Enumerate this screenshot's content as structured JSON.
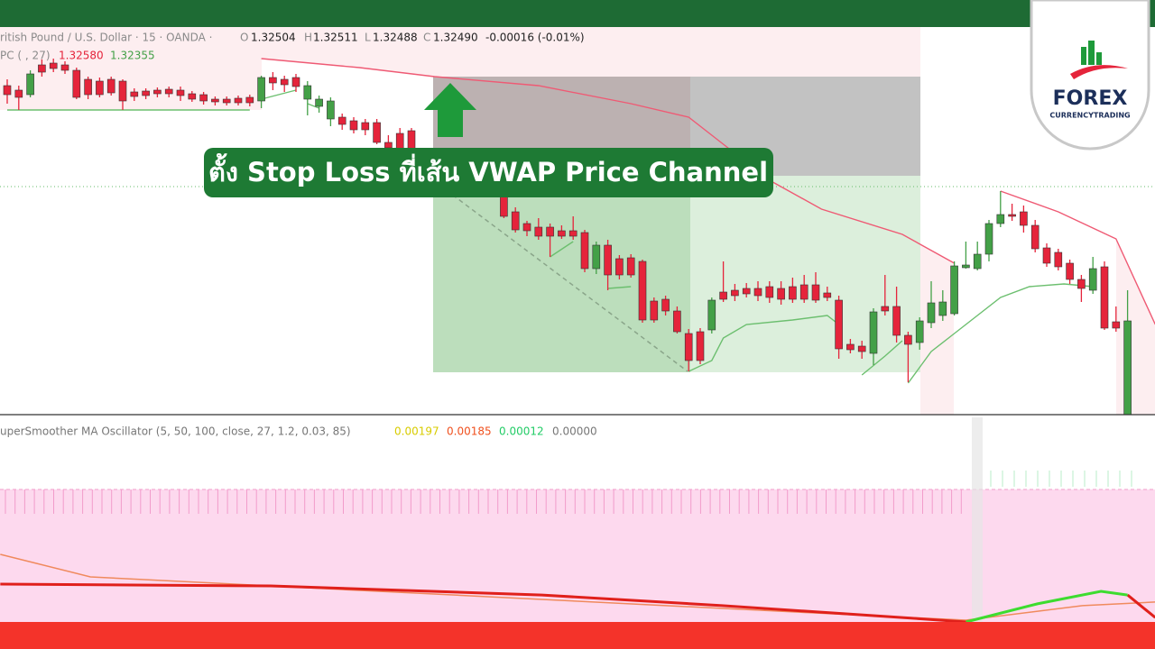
{
  "header": {
    "symbol": "ritish Pound / U.S. Dollar · 15 · OANDA ·",
    "fields": [
      {
        "label": "O",
        "value": "1.32504"
      },
      {
        "label": "H",
        "value": "1.32511"
      },
      {
        "label": "L",
        "value": "1.32488"
      },
      {
        "label": "C",
        "value": "1.32490"
      }
    ],
    "change": "-0.00016 (-0.01%)"
  },
  "channel_legend": {
    "label": "PC ( , 27)",
    "upper": "1.32580",
    "lower": "1.32355"
  },
  "oscillator_legend": {
    "label": "uperSmoother MA Oscillator (5, 50, 100, close, 27, 1.2, 0.03, 85)",
    "values": [
      "0.00197",
      "0.00185",
      "0.00012",
      "0.00000"
    ]
  },
  "banner": "ตั้ง Stop Loss ที่เส้น VWAP Price Channel",
  "logo": {
    "name": "FOREX",
    "tagline": "CURRENCYTRADING"
  },
  "chart_data": [
    {
      "type": "candlestick",
      "xlim": [
        -0.625,
        99.375
      ],
      "ylim": [
        1.3254,
        1.3297
      ],
      "up_color": "#43a047",
      "down_color": "#e5243b",
      "price_line": 1.32793,
      "price_line_color": "#66bb6a",
      "open": [
        1.32905,
        1.329,
        1.32895,
        1.32928,
        1.3293,
        1.32928,
        1.32922,
        1.32912,
        1.3291,
        1.32912,
        1.3291,
        1.32898,
        1.32899,
        1.329,
        1.32901,
        1.329,
        1.32896,
        1.32895,
        1.3289,
        1.3289,
        1.32891,
        1.32892,
        1.32888,
        1.32914,
        1.32912,
        1.32914,
        1.3289,
        1.32882,
        1.32868,
        1.3287,
        1.32866,
        1.32864,
        1.32864,
        1.32842,
        1.32852,
        1.32855,
        null,
        null,
        null,
        null,
        null,
        null,
        null,
        1.32785,
        1.32765,
        1.32752,
        1.32748,
        1.32748,
        1.32744,
        1.32744,
        1.32742,
        1.32702,
        1.32728,
        1.32713,
        1.32714,
        1.3271,
        1.32666,
        1.32668,
        1.32655,
        1.3263,
        1.32632,
        1.32634,
        1.32676,
        1.32678,
        1.3268,
        1.3268,
        1.32682,
        1.3268,
        1.32682,
        1.32684,
        1.32684,
        1.32675,
        1.32667,
        1.32618,
        1.32616,
        1.32608,
        1.3266,
        1.3266,
        1.32628,
        1.3262,
        1.32642,
        1.3265,
        1.32652,
        1.32703,
        1.32702,
        1.32718,
        1.32752,
        1.32762,
        1.32765,
        1.3275,
        1.32725,
        1.3272,
        1.32708,
        1.3269,
        1.32678,
        1.32704,
        1.32643,
        1.3254
      ],
      "high": [
        1.32912,
        1.32905,
        1.32922,
        1.32934,
        1.32935,
        1.32932,
        1.32925,
        1.32915,
        1.32914,
        1.32915,
        1.32912,
        1.32902,
        1.32902,
        1.32903,
        1.32904,
        1.32904,
        1.32899,
        1.32898,
        1.32893,
        1.32893,
        1.32894,
        1.32895,
        1.32916,
        1.3292,
        1.32916,
        1.32918,
        1.3291,
        1.32894,
        1.32892,
        1.32874,
        1.3287,
        1.32868,
        1.32868,
        1.3285,
        1.32858,
        1.32858,
        null,
        null,
        null,
        null,
        null,
        null,
        null,
        1.3279,
        1.3277,
        1.32755,
        1.32758,
        1.32752,
        1.3275,
        1.3276,
        1.32745,
        1.32732,
        1.32734,
        1.32717,
        1.32718,
        1.32712,
        1.3267,
        1.32672,
        1.3266,
        1.32635,
        1.32636,
        1.3267,
        1.3271,
        1.32685,
        1.32686,
        1.32688,
        1.32688,
        1.32688,
        1.32692,
        1.32695,
        1.32698,
        1.32682,
        1.32672,
        1.32624,
        1.32622,
        1.32658,
        1.32695,
        1.32682,
        1.32632,
        1.32648,
        1.32688,
        1.32678,
        1.3271,
        1.32732,
        1.32732,
        1.32756,
        1.32788,
        1.32774,
        1.32772,
        1.32756,
        1.3273,
        1.32724,
        1.32712,
        1.32695,
        1.32715,
        1.3271,
        1.3266,
        1.32678
      ],
      "low": [
        1.32885,
        1.32878,
        1.32892,
        1.32915,
        1.3292,
        1.32918,
        1.3289,
        1.3289,
        1.32892,
        1.32894,
        1.32878,
        1.32888,
        1.3289,
        1.32892,
        1.32892,
        1.32888,
        1.32887,
        1.32884,
        1.32883,
        1.32883,
        1.32883,
        1.32882,
        1.3288,
        1.329,
        1.32898,
        1.32898,
        1.32872,
        1.32875,
        1.3286,
        1.32856,
        1.32852,
        1.3285,
        1.3284,
        1.3283,
        1.32825,
        1.32825,
        null,
        null,
        null,
        null,
        null,
        null,
        null,
        1.32758,
        1.32742,
        1.32738,
        1.32734,
        1.32715,
        1.32735,
        1.32734,
        1.32698,
        1.32696,
        1.32678,
        1.3269,
        1.32692,
        1.32642,
        1.32642,
        1.3265,
        1.3263,
        1.32588,
        1.32596,
        1.3263,
        1.32665,
        1.32666,
        1.3267,
        1.32666,
        1.32664,
        1.32662,
        1.32664,
        1.32664,
        1.32664,
        1.32666,
        1.32602,
        1.32608,
        1.32602,
        1.32595,
        1.3265,
        1.3262,
        1.32576,
        1.32612,
        1.32636,
        1.32644,
        1.3265,
        1.32702,
        1.327,
        1.3271,
        1.32748,
        1.32755,
        1.32742,
        1.3272,
        1.32704,
        1.327,
        1.32685,
        1.32665,
        1.32674,
        1.32634,
        1.32632,
        1.3254
      ],
      "close": [
        1.32895,
        1.32892,
        1.32918,
        1.3292,
        1.32924,
        1.32922,
        1.32892,
        1.32895,
        1.32895,
        1.32897,
        1.32888,
        1.32893,
        1.32894,
        1.32896,
        1.32896,
        1.32894,
        1.3289,
        1.32888,
        1.32887,
        1.32886,
        1.32886,
        1.32886,
        1.32914,
        1.32908,
        1.32906,
        1.32904,
        1.32905,
        1.3289,
        1.32888,
        1.32862,
        1.32856,
        1.32856,
        1.32842,
        1.32836,
        1.3283,
        1.3283,
        null,
        null,
        null,
        null,
        null,
        null,
        null,
        1.3276,
        1.32745,
        1.32744,
        1.32738,
        1.32738,
        1.32738,
        1.32738,
        1.32702,
        1.32728,
        1.32695,
        1.32695,
        1.32695,
        1.32645,
        1.32645,
        1.32655,
        1.32632,
        1.326,
        1.326,
        1.32667,
        1.32668,
        1.32672,
        1.32674,
        1.32672,
        1.3267,
        1.32668,
        1.32668,
        1.32668,
        1.32667,
        1.3267,
        1.32613,
        1.32612,
        1.3261,
        1.32654,
        1.32655,
        1.32628,
        1.32618,
        1.32644,
        1.32664,
        1.32665,
        1.32705,
        1.32706,
        1.32718,
        1.32752,
        1.32762,
        1.3276,
        1.3275,
        1.32724,
        1.32708,
        1.32704,
        1.3269,
        1.3268,
        1.32702,
        1.32636,
        1.32636,
        1.32644
      ],
      "lines": [
        {
          "color": "#ef5a74",
          "x": [
            22,
            30.5,
            37,
            46,
            54,
            59,
            62,
            66,
            70.5,
            77.5,
            82,
            84,
            86,
            91,
            96,
            99.4
          ],
          "values": [
            1.32935,
            1.32925,
            1.32915,
            1.32905,
            1.32885,
            1.3287,
            1.3284,
            1.328,
            1.32768,
            1.3274,
            1.32708,
            null,
            1.32788,
            1.32765,
            1.32735,
            1.3264
          ]
        },
        {
          "color": "#6cbf6f",
          "x": [
            0,
            21,
            21.5,
            22,
            25,
            25.8,
            26,
            27,
            30,
            47,
            49,
            50,
            52,
            54,
            55,
            59,
            61,
            62,
            64,
            68,
            71,
            72,
            73,
            74,
            76,
            77.5,
            77.8,
            78,
            80,
            82,
            84,
            86,
            88.5,
            91.5,
            94
          ],
          "values": [
            1.32878,
            1.32878,
            null,
            1.3289,
            1.329,
            null,
            1.32885,
            1.3288,
            null,
            1.32715,
            1.32732,
            null,
            1.3268,
            1.32682,
            null,
            1.32588,
            1.326,
            1.32625,
            1.3264,
            1.32645,
            1.3265,
            1.3264,
            null,
            1.32584,
            1.32605,
            1.32622,
            null,
            1.32575,
            1.3261,
            1.3263,
            1.3265,
            1.3267,
            1.32682,
            1.32685,
            1.32682
          ]
        }
      ]
    },
    {
      "type": "line",
      "xlim": [
        -0.625,
        99.375
      ],
      "ylim": [
        -0.004,
        0.004
      ],
      "series": [
        {
          "color": "#e0201b",
          "x": [
            -0.6,
            22.8,
            46.3,
            61.9,
            77.5,
            83
          ],
          "values": [
            -0.00254,
            -0.00261,
            -0.00296,
            -0.00337,
            -0.00383,
            -0.004
          ]
        },
        {
          "color": "#3ddc2f",
          "x": [
            83,
            89.2,
            94.7,
            97
          ],
          "values": [
            -0.004,
            -0.0033,
            -0.00282,
            -0.00296
          ]
        },
        {
          "color": "#e0201b",
          "x": [
            97,
            99.4
          ],
          "values": [
            -0.00296,
            -0.00383
          ]
        },
        {
          "color": "#f08a5d",
          "x": [
            -0.6,
            7.2,
            22.8,
            46.3,
            69.7,
            83,
            93.1,
            99.4
          ],
          "values": [
            -0.00139,
            -0.00226,
            -0.00261,
            -0.00313,
            -0.00365,
            -0.00393,
            -0.00337,
            -0.00323
          ]
        }
      ]
    }
  ]
}
